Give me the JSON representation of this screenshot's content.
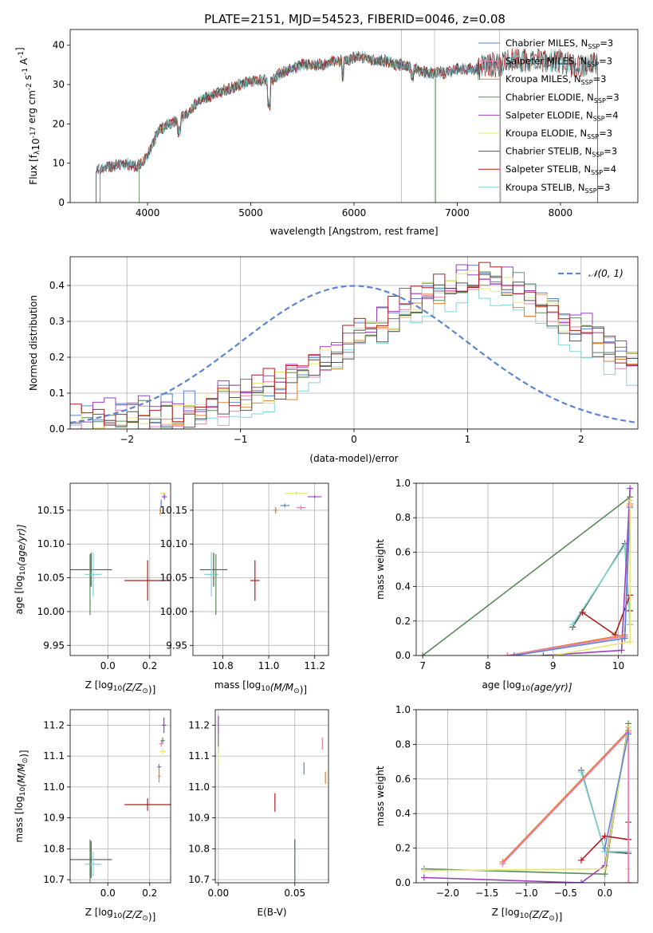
{
  "figure": {
    "title": "PLATE=2151, MJD=54523, FIBERID=0046, z=0.08"
  },
  "colors": {
    "Chabrier MILES": "#5b84d3",
    "Salpeter MILES": "#e87fb2",
    "Kroupa MILES": "#e08030",
    "Chabrier ELODIE": "#5a8a5a",
    "Salpeter ELODIE": "#9a3fbf",
    "Kroupa ELODIE": "#e4e870",
    "Chabrier STELIB": "#555555",
    "Salpeter STELIB": "#b01c1c",
    "Kroupa STELIB": "#7fd6d6",
    "normal": "#5b84d3"
  },
  "chart_data": [
    {
      "id": "spectrum",
      "type": "line",
      "xlabel": "wavelength [Angstrom, rest frame]",
      "ylabel": "Flux [f",
      "ylabel_sub": "λ",
      "ylabel_mid": "10",
      "ylabel_sup": "-17",
      "ylabel_rest": " erg cm",
      "ylabel_sup2": "-2",
      "ylabel_rest2": " s",
      "ylabel_sup3": "-1",
      "ylabel_rest3": " A",
      "ylabel_sup4": "-1",
      "ylabel_end": "]",
      "xlim": [
        3250,
        8750
      ],
      "ylim": [
        0,
        44
      ],
      "xticks": [
        4000,
        5000,
        6000,
        7000,
        8000
      ],
      "yticks": [
        0,
        10,
        20,
        30,
        40
      ],
      "legend": [
        {
          "base": "Chabrier MILES, N",
          "sub": "SSP",
          "end": "=3"
        },
        {
          "base": "Salpeter MILES, N",
          "sub": "SSP",
          "end": "=3"
        },
        {
          "base": "Kroupa MILES, N",
          "sub": "SSP",
          "end": "=3"
        },
        {
          "base": "Chabrier ELODIE, N",
          "sub": "SSP",
          "end": "=3"
        },
        {
          "base": "Salpeter ELODIE, N",
          "sub": "SSP",
          "end": "=4"
        },
        {
          "base": "Kroupa ELODIE, N",
          "sub": "SSP",
          "end": "=3"
        },
        {
          "base": "Chabrier STELIB, N",
          "sub": "SSP",
          "end": "=3"
        },
        {
          "base": "Salpeter STELIB, N",
          "sub": "SSP",
          "end": "=4"
        },
        {
          "base": "Kroupa STELIB, N",
          "sub": "SSP",
          "end": "=3"
        }
      ],
      "legend_placement": "top-right",
      "continuum": {
        "x": [
          3500,
          3600,
          3700,
          3800,
          3900,
          4000,
          4100,
          4200,
          4300,
          4400,
          4500,
          4600,
          4700,
          4800,
          4900,
          5000,
          5100,
          5200,
          5300,
          5400,
          5500,
          5600,
          5700,
          5800,
          5900,
          6000,
          6100,
          6200,
          6300,
          6400,
          6500,
          6600,
          6700,
          6800,
          6900,
          7000,
          7100,
          7200,
          7300,
          7400,
          7500,
          7600,
          7700,
          7800,
          7900,
          8000,
          8100,
          8200,
          8300
        ],
        "y": [
          8,
          9,
          9.5,
          10,
          9,
          12,
          18,
          20,
          21,
          23,
          26,
          27,
          28,
          29,
          30,
          31,
          31,
          31,
          33,
          34,
          35,
          35,
          35,
          36,
          36,
          37,
          37,
          36,
          36,
          35,
          35,
          34,
          33,
          33,
          33,
          34,
          34,
          34,
          35,
          35,
          36,
          36,
          36,
          36,
          36,
          36,
          35,
          35,
          35
        ]
      },
      "vlines": [
        6460,
        6780,
        7410
      ]
    },
    {
      "id": "residuals",
      "type": "histogram",
      "xlabel": "(data-model)/error",
      "ylabel": "Normed distribution",
      "xlim": [
        -2.5,
        2.5
      ],
      "ylim": [
        0,
        0.48
      ],
      "xticks": [
        -2,
        -1,
        0,
        1,
        2
      ],
      "yticks": [
        0,
        0.1,
        0.2,
        0.3,
        0.4
      ],
      "grid": true,
      "legend": "𝒩(0, 1)",
      "legend_placement": "top-right",
      "bin_width": 0.1,
      "bins_start": -2.5,
      "envelope": [
        0.01,
        0.01,
        0.02,
        0.02,
        0.02,
        0.03,
        0.03,
        0.03,
        0.04,
        0.04,
        0.05,
        0.05,
        0.06,
        0.07,
        0.08,
        0.09,
        0.1,
        0.11,
        0.12,
        0.13,
        0.15,
        0.17,
        0.19,
        0.21,
        0.23,
        0.25,
        0.27,
        0.29,
        0.31,
        0.33,
        0.35,
        0.37,
        0.38,
        0.39,
        0.4,
        0.41,
        0.41,
        0.4,
        0.39,
        0.38,
        0.36,
        0.34,
        0.32,
        0.3,
        0.28,
        0.26,
        0.24,
        0.22,
        0.2,
        0.18
      ]
    },
    {
      "id": "age-Z",
      "type": "scatter",
      "xlabel": "Z [log",
      "xlabel_sub": "10",
      "xlabel_rest": "(Z/Z",
      "xlabel_sub2": "⊙",
      "xlabel_end": ")]",
      "ylabel": "age  [log",
      "ylabel_sub": "10",
      "ylabel_end": "(age/yr)]",
      "xlim": [
        -0.18,
        0.3
      ],
      "ylim": [
        9.935,
        10.19
      ],
      "xticks": [
        0.0,
        0.2
      ],
      "yticks": [
        9.95,
        10.0,
        10.05,
        10.1,
        10.15
      ],
      "grid": true,
      "points": [
        {
          "model": "Chabrier STELIB",
          "x": -0.08,
          "y": 10.062,
          "xerr": 0.1,
          "yerr": 0.025
        },
        {
          "model": "Kroupa STELIB",
          "x": -0.07,
          "y": 10.055,
          "xerr": 0.04,
          "yerr": 0.033
        },
        {
          "model": "Chabrier ELODIE",
          "x": -0.085,
          "y": 10.04,
          "xerr": 0.0,
          "yerr": 0.045
        },
        {
          "model": "Salpeter STELIB",
          "x": 0.19,
          "y": 10.046,
          "xerr": 0.11,
          "yerr": 0.03
        },
        {
          "model": "Kroupa ELODIE",
          "x": 0.265,
          "y": 10.175,
          "xerr": 0.015,
          "yerr": 0.002
        },
        {
          "model": "Salpeter ELODIE",
          "x": 0.27,
          "y": 10.17,
          "xerr": 0.012,
          "yerr": 0.004
        },
        {
          "model": "Chabrier MILES",
          "x": 0.255,
          "y": 10.16,
          "xerr": 0.0,
          "yerr": 0.006
        },
        {
          "model": "Salpeter MILES",
          "x": 0.252,
          "y": 10.152,
          "xerr": 0.0,
          "yerr": 0.005
        },
        {
          "model": "Kroupa MILES",
          "x": 0.25,
          "y": 10.148,
          "xerr": 0.0,
          "yerr": 0.005
        }
      ]
    },
    {
      "id": "age-mass",
      "type": "scatter",
      "xlabel": "mass [log",
      "xlabel_sub": "10",
      "xlabel_rest": "(M/M",
      "xlabel_sub2": "⊙",
      "xlabel_end": ")]",
      "ylabel": "",
      "xlim": [
        10.67,
        11.26
      ],
      "ylim": [
        9.935,
        10.19
      ],
      "xticks": [
        10.8,
        11.0,
        11.2
      ],
      "yticks": [
        9.95,
        10.0,
        10.05,
        10.1,
        10.15
      ],
      "grid": true,
      "points": [
        {
          "model": "Chabrier STELIB",
          "x": 10.76,
          "y": 10.062,
          "xerr": 0.06,
          "yerr": 0.025
        },
        {
          "model": "Kroupa STELIB",
          "x": 10.75,
          "y": 10.055,
          "xerr": 0.03,
          "yerr": 0.033
        },
        {
          "model": "Chabrier ELODIE",
          "x": 10.77,
          "y": 10.04,
          "xerr": 0.0,
          "yerr": 0.045
        },
        {
          "model": "Salpeter STELIB",
          "x": 10.94,
          "y": 10.046,
          "xerr": 0.02,
          "yerr": 0.03
        },
        {
          "model": "Kroupa ELODIE",
          "x": 11.12,
          "y": 10.175,
          "xerr": 0.05,
          "yerr": 0.003
        },
        {
          "model": "Salpeter ELODIE",
          "x": 11.2,
          "y": 10.17,
          "xerr": 0.03,
          "yerr": 0.002
        },
        {
          "model": "Chabrier MILES",
          "x": 11.07,
          "y": 10.157,
          "xerr": 0.02,
          "yerr": 0.003
        },
        {
          "model": "Salpeter MILES",
          "x": 11.14,
          "y": 10.154,
          "xerr": 0.02,
          "yerr": 0.003
        },
        {
          "model": "Kroupa MILES",
          "x": 11.03,
          "y": 10.15,
          "xerr": 0.01,
          "yerr": 0.005
        }
      ]
    },
    {
      "id": "weight-age",
      "type": "line",
      "xlabel": "age  [log",
      "xlabel_sub": "10",
      "xlabel_end": "(age/yr)]",
      "ylabel": "mass weight",
      "xlim": [
        6.9,
        10.3
      ],
      "ylim": [
        0,
        1
      ],
      "xticks": [
        7,
        8,
        9,
        10
      ],
      "yticks": [
        0.0,
        0.2,
        0.4,
        0.6,
        0.8,
        1.0
      ],
      "grid": true,
      "series": [
        {
          "model": "Chabrier ELODIE",
          "x": [
            7.0,
            10.18
          ],
          "y": [
            0.0,
            0.92
          ]
        },
        {
          "model": "Chabrier STELIB",
          "x": [
            9.3,
            10.1,
            10.18
          ],
          "y": [
            0.165,
            0.65,
            0.18
          ]
        },
        {
          "model": "Kroupa STELIB",
          "x": [
            9.3,
            10.1,
            10.18
          ],
          "y": [
            0.18,
            0.64,
            0.18
          ]
        },
        {
          "model": "Salpeter STELIB",
          "x": [
            9.45,
            9.95,
            10.18,
            10.18
          ],
          "y": [
            0.25,
            0.12,
            0.35,
            0.26
          ]
        },
        {
          "model": "Salpeter ELODIE",
          "x": [
            8.85,
            10.05,
            10.18
          ],
          "y": [
            0.0,
            0.03,
            0.97
          ]
        },
        {
          "model": "Kroupa MILES",
          "x": [
            8.3,
            10.1,
            10.18
          ],
          "y": [
            0.0,
            0.12,
            0.88
          ]
        },
        {
          "model": "Salpeter MILES",
          "x": [
            8.3,
            10.1,
            10.18
          ],
          "y": [
            0.0,
            0.11,
            0.87
          ]
        },
        {
          "model": "Chabrier MILES",
          "x": [
            8.4,
            10.1,
            10.18
          ],
          "y": [
            0.0,
            0.1,
            0.86
          ]
        },
        {
          "model": "Kroupa ELODIE",
          "x": [
            9.0,
            10.18,
            10.18
          ],
          "y": [
            0.0,
            0.08,
            0.9
          ]
        }
      ]
    },
    {
      "id": "mass-Z",
      "type": "scatter",
      "xlabel": "Z [log",
      "xlabel_sub": "10",
      "xlabel_rest": "(Z/Z",
      "xlabel_sub2": "⊙",
      "xlabel_end": ")]",
      "ylabel": "mass [log",
      "ylabel_sub": "10",
      "ylabel_rest": "(M/M",
      "ylabel_sub2": "⊙",
      "ylabel_end": ")]",
      "xlim": [
        -0.18,
        0.3
      ],
      "ylim": [
        10.69,
        11.25
      ],
      "xticks": [
        0.0,
        0.2
      ],
      "yticks": [
        10.7,
        10.8,
        10.9,
        11.0,
        11.1,
        11.2
      ],
      "grid": true,
      "points": [
        {
          "model": "Chabrier STELIB",
          "x": -0.08,
          "y": 10.765,
          "xerr": 0.1,
          "yerr": 0.06
        },
        {
          "model": "Kroupa STELIB",
          "x": -0.07,
          "y": 10.75,
          "xerr": 0.04,
          "yerr": 0.04
        },
        {
          "model": "Chabrier ELODIE",
          "x": -0.085,
          "y": 10.76,
          "xerr": 0.0,
          "yerr": 0.07
        },
        {
          "model": "Salpeter STELIB",
          "x": 0.19,
          "y": 10.943,
          "xerr": 0.11,
          "yerr": 0.02
        },
        {
          "model": "Salpeter ELODIE",
          "x": 0.268,
          "y": 11.2,
          "xerr": 0.01,
          "yerr": 0.025
        },
        {
          "model": "Chabrier ELODIE",
          "x": 0.262,
          "y": 11.15,
          "xerr": 0.01,
          "yerr": 0.01
        },
        {
          "model": "Salpeter MILES",
          "x": 0.255,
          "y": 11.14,
          "xerr": 0.01,
          "yerr": 0.01
        },
        {
          "model": "Kroupa ELODIE",
          "x": 0.262,
          "y": 11.115,
          "xerr": 0.015,
          "yerr": 0.01
        },
        {
          "model": "Chabrier MILES",
          "x": 0.245,
          "y": 11.065,
          "xerr": 0.01,
          "yerr": 0.01
        },
        {
          "model": "Kroupa MILES",
          "x": 0.245,
          "y": 11.035,
          "xerr": 0.005,
          "yerr": 0.02
        }
      ]
    },
    {
      "id": "mass-EBV",
      "type": "scatter",
      "xlabel": "E(B-V)",
      "ylabel": "",
      "xlim": [
        -0.002,
        0.072
      ],
      "ylim": [
        10.69,
        11.25
      ],
      "xticks": [
        0.0,
        0.05
      ],
      "yticks": [
        10.7,
        10.8,
        10.9,
        11.0,
        11.1,
        11.2
      ],
      "grid": true,
      "points": [
        {
          "model": "Salpeter ELODIE",
          "x": 0.0,
          "y": 11.2,
          "xerr": 0,
          "yerr": 0.03
        },
        {
          "model": "Chabrier ELODIE",
          "x": 0.0,
          "y": 11.14,
          "xerr": 0,
          "yerr": 0.03
        },
        {
          "model": "Kroupa ELODIE",
          "x": 0.0,
          "y": 11.1,
          "xerr": 0,
          "yerr": 0.03
        },
        {
          "model": "Salpeter STELIB",
          "x": 0.037,
          "y": 10.95,
          "xerr": 0,
          "yerr": 0.03
        },
        {
          "model": "Chabrier MILES",
          "x": 0.056,
          "y": 11.06,
          "xerr": 0,
          "yerr": 0.02
        },
        {
          "model": "Salpeter MILES",
          "x": 0.068,
          "y": 11.14,
          "xerr": 0,
          "yerr": 0.02
        },
        {
          "model": "Kroupa MILES",
          "x": 0.07,
          "y": 11.03,
          "xerr": 0,
          "yerr": 0.02
        },
        {
          "model": "Chabrier STELIB",
          "x": 0.05,
          "y": 10.765,
          "xerr": 0,
          "yerr": 0.065
        },
        {
          "model": "Kroupa STELIB",
          "x": 0.05,
          "y": 10.75,
          "xerr": 0,
          "yerr": 0.05
        },
        {
          "model": "Chabrier ELODIE",
          "x": 0.05,
          "y": 10.76,
          "xerr": 0,
          "yerr": 0.07
        }
      ]
    },
    {
      "id": "weight-Z",
      "type": "line",
      "xlabel": "Z [log",
      "xlabel_sub": "10",
      "xlabel_rest": "(Z/Z",
      "xlabel_sub2": "⊙",
      "xlabel_end": ")]",
      "ylabel": "mass weight",
      "xlim": [
        -2.4,
        0.42
      ],
      "ylim": [
        0,
        1
      ],
      "xticks": [
        -2.0,
        -1.5,
        -1.0,
        -0.5,
        0.0
      ],
      "yticks": [
        0.0,
        0.2,
        0.4,
        0.6,
        0.8,
        1.0
      ],
      "grid": true,
      "series": [
        {
          "model": "Chabrier ELODIE",
          "x": [
            -2.3,
            0.0,
            0.3
          ],
          "y": [
            0.08,
            0.05,
            0.92
          ]
        },
        {
          "model": "Salpeter ELODIE",
          "x": [
            -2.3,
            -0.3,
            0.0,
            0.3
          ],
          "y": [
            0.03,
            0.0,
            0.1,
            0.9
          ]
        },
        {
          "model": "Kroupa ELODIE",
          "x": [
            -2.3,
            0.0,
            0.3,
            0.3
          ],
          "y": [
            0.07,
            0.08,
            0.9,
            0.08
          ]
        },
        {
          "model": "Chabrier STELIB",
          "x": [
            -0.3,
            0.0,
            0.3
          ],
          "y": [
            0.65,
            0.18,
            0.17
          ]
        },
        {
          "model": "Kroupa STELIB",
          "x": [
            -0.3,
            0.0,
            0.3
          ],
          "y": [
            0.64,
            0.18,
            0.18
          ]
        },
        {
          "model": "Salpeter STELIB",
          "x": [
            -0.3,
            0.0,
            0.3,
            0.3
          ],
          "y": [
            0.13,
            0.27,
            0.25,
            0.35
          ]
        },
        {
          "model": "Kroupa MILES",
          "x": [
            -1.3,
            0.3,
            0.3
          ],
          "y": [
            0.12,
            0.88,
            0.0
          ]
        },
        {
          "model": "Salpeter MILES",
          "x": [
            -1.3,
            0.3,
            0.3
          ],
          "y": [
            0.11,
            0.87,
            0.0
          ]
        },
        {
          "model": "Chabrier MILES",
          "x": [
            0.0,
            0.3
          ],
          "y": [
            0.2,
            0.86
          ]
        }
      ]
    }
  ]
}
